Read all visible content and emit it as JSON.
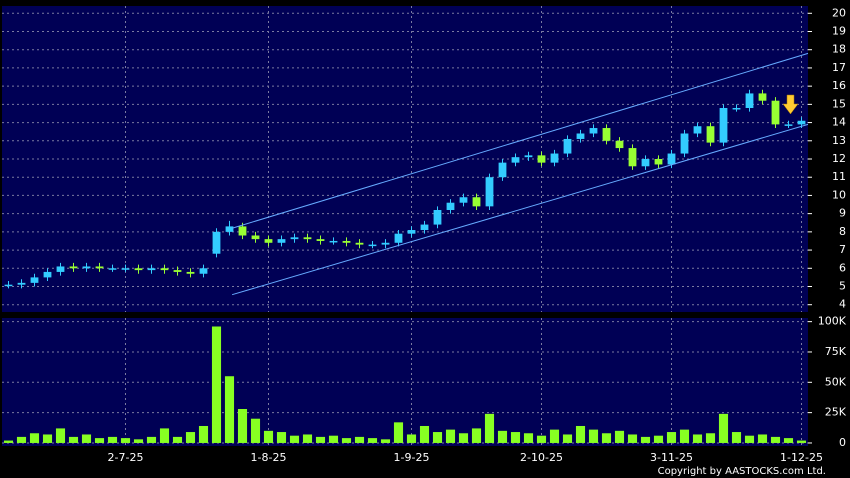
{
  "chart_data": {
    "type": "candlestick",
    "categories": [
      null,
      null,
      null,
      null,
      null,
      null,
      null,
      null,
      null,
      "2-7-25",
      null,
      null,
      null,
      null,
      null,
      null,
      null,
      null,
      null,
      null,
      "1-8-25",
      null,
      null,
      null,
      null,
      null,
      null,
      null,
      null,
      null,
      null,
      "1-9-25",
      null,
      null,
      null,
      null,
      null,
      null,
      null,
      null,
      null,
      "2-10-25",
      null,
      null,
      null,
      null,
      null,
      null,
      null,
      null,
      null,
      "3-11-25",
      null,
      null,
      null,
      null,
      null,
      null,
      null,
      null,
      null,
      "1-12-25"
    ],
    "open": [
      5.1,
      5.1,
      5.2,
      5.5,
      5.8,
      6.1,
      6.0,
      6.1,
      6.0,
      6.0,
      6.0,
      5.9,
      6.0,
      5.9,
      5.8,
      5.7,
      6.8,
      8.0,
      8.3,
      7.8,
      7.6,
      7.4,
      7.6,
      7.7,
      7.6,
      7.5,
      7.5,
      7.4,
      7.3,
      7.3,
      7.4,
      7.9,
      8.1,
      8.4,
      9.2,
      9.6,
      9.9,
      9.4,
      11.0,
      11.8,
      12.1,
      12.2,
      11.8,
      12.3,
      13.1,
      13.4,
      13.7,
      13.0,
      12.6,
      11.6,
      12.0,
      11.7,
      12.3,
      13.4,
      13.8,
      12.9,
      14.8,
      14.8,
      15.6,
      15.2,
      13.9,
      13.9
    ],
    "high": [
      5.3,
      5.4,
      5.7,
      6.0,
      6.3,
      6.3,
      6.3,
      6.3,
      6.2,
      6.2,
      6.2,
      6.2,
      6.2,
      6.1,
      6.0,
      6.2,
      8.2,
      8.6,
      8.5,
      8.0,
      7.8,
      7.8,
      7.9,
      7.9,
      7.8,
      7.7,
      7.7,
      7.6,
      7.5,
      7.6,
      8.1,
      8.3,
      8.6,
      9.4,
      9.8,
      10.1,
      10.1,
      11.2,
      12.0,
      12.3,
      12.4,
      12.4,
      12.5,
      13.3,
      13.6,
      13.9,
      13.9,
      13.2,
      12.8,
      12.2,
      12.2,
      12.5,
      13.6,
      14.0,
      14.0,
      15.0,
      15.0,
      15.8,
      15.8,
      15.4,
      14.1,
      14.3
    ],
    "low": [
      4.9,
      4.9,
      5.0,
      5.3,
      5.6,
      5.8,
      5.8,
      5.8,
      5.8,
      5.8,
      5.7,
      5.7,
      5.7,
      5.6,
      5.5,
      5.5,
      6.6,
      7.8,
      7.6,
      7.4,
      7.2,
      7.2,
      7.4,
      7.4,
      7.3,
      7.3,
      7.2,
      7.1,
      7.1,
      7.1,
      7.2,
      7.7,
      7.9,
      8.2,
      9.0,
      9.4,
      9.2,
      9.2,
      10.8,
      11.6,
      11.9,
      11.6,
      11.6,
      12.1,
      12.9,
      13.2,
      12.8,
      12.4,
      11.4,
      11.4,
      11.5,
      11.5,
      12.1,
      13.2,
      12.7,
      12.7,
      14.6,
      14.6,
      15.0,
      13.7,
      13.7,
      13.7
    ],
    "close": [
      5.1,
      5.2,
      5.5,
      5.8,
      6.1,
      6.0,
      6.1,
      6.0,
      6.0,
      6.0,
      5.9,
      6.0,
      5.9,
      5.8,
      5.7,
      6.0,
      8.0,
      8.3,
      7.8,
      7.6,
      7.4,
      7.6,
      7.7,
      7.6,
      7.5,
      7.5,
      7.4,
      7.3,
      7.3,
      7.4,
      7.9,
      8.1,
      8.4,
      9.2,
      9.6,
      9.9,
      9.4,
      11.0,
      11.8,
      12.1,
      12.2,
      11.8,
      12.3,
      13.1,
      13.4,
      13.7,
      13.0,
      12.6,
      11.6,
      12.0,
      11.7,
      12.3,
      13.4,
      13.8,
      12.9,
      14.8,
      14.8,
      15.6,
      15.2,
      13.9,
      13.9,
      14.1
    ],
    "up_color": "#33ccff",
    "down_color": "#99ff33",
    "ylim": [
      3.6,
      20.4
    ],
    "yticks": [
      4,
      5,
      6,
      7,
      8,
      9,
      10,
      11,
      12,
      13,
      14,
      15,
      16,
      17,
      18,
      19,
      20
    ],
    "grid": true,
    "trendlines": [
      {
        "x": [
          17.2,
          61.5
        ],
        "y": [
          8.2,
          17.8
        ]
      },
      {
        "x": [
          17.2,
          61.5
        ],
        "y": [
          4.55,
          13.9
        ]
      }
    ],
    "trendline_color": "#66aaff",
    "volume": {
      "color": "#88ff22",
      "values": [
        2000,
        5000,
        8000,
        7000,
        12000,
        5000,
        7000,
        4000,
        5000,
        4000,
        3000,
        5000,
        12000,
        5000,
        9000,
        14000,
        96000,
        55000,
        28000,
        20000,
        10000,
        9000,
        6000,
        7000,
        5000,
        6000,
        4000,
        5000,
        4000,
        3000,
        17000,
        7000,
        14000,
        9000,
        11000,
        8000,
        12000,
        24000,
        10000,
        9000,
        8000,
        6000,
        11000,
        7000,
        14000,
        11000,
        8000,
        10000,
        7000,
        5000,
        6000,
        9000,
        11000,
        7000,
        8000,
        24000,
        9000,
        6000,
        7000,
        5000,
        4000,
        2000
      ],
      "ylim": [
        -2500,
        103000
      ],
      "yticks": [
        0,
        {
          "value": 25000,
          "label": "25K"
        },
        {
          "value": 50000,
          "label": "50K"
        },
        {
          "value": 75000,
          "label": "75K"
        },
        {
          "value": 100000,
          "label": "100K"
        }
      ]
    },
    "copyright": "Copyright by AASTOCKS.com Ltd."
  }
}
